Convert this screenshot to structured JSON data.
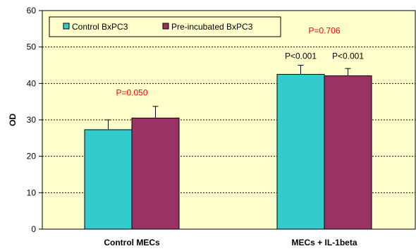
{
  "chart_data": {
    "type": "bar",
    "categories": [
      "Control MECs",
      "MECs + IL-1beta"
    ],
    "series": [
      {
        "name": "Control BxPC3",
        "values": [
          27.3,
          42.5
        ],
        "errors": [
          2.7,
          2.5
        ],
        "color": "#33cccc"
      },
      {
        "name": "Pre-incubated BxPC3",
        "values": [
          30.5,
          42.1
        ],
        "errors": [
          3.2,
          2.0
        ],
        "color": "#993366"
      }
    ],
    "xlabel": "",
    "ylabel": "OD",
    "ylim": [
      0,
      60
    ],
    "yticks": [
      0,
      10,
      20,
      30,
      40,
      50,
      60
    ],
    "grid": true,
    "plot_background": "#ffffcc",
    "legend_position": "top-left",
    "annotations": [
      {
        "text": "P=0.050",
        "category": 0,
        "y": 37.5,
        "color": "#ff0000"
      },
      {
        "text": "P=0.706",
        "category": 1,
        "y": 54.5,
        "color": "#ff0000"
      },
      {
        "text": "P<0.001",
        "category": 1,
        "series": 0,
        "y": 47.5,
        "color": "#000000"
      },
      {
        "text": "P<0.001",
        "category": 1,
        "series": 1,
        "y": 47.5,
        "color": "#000000"
      }
    ]
  }
}
